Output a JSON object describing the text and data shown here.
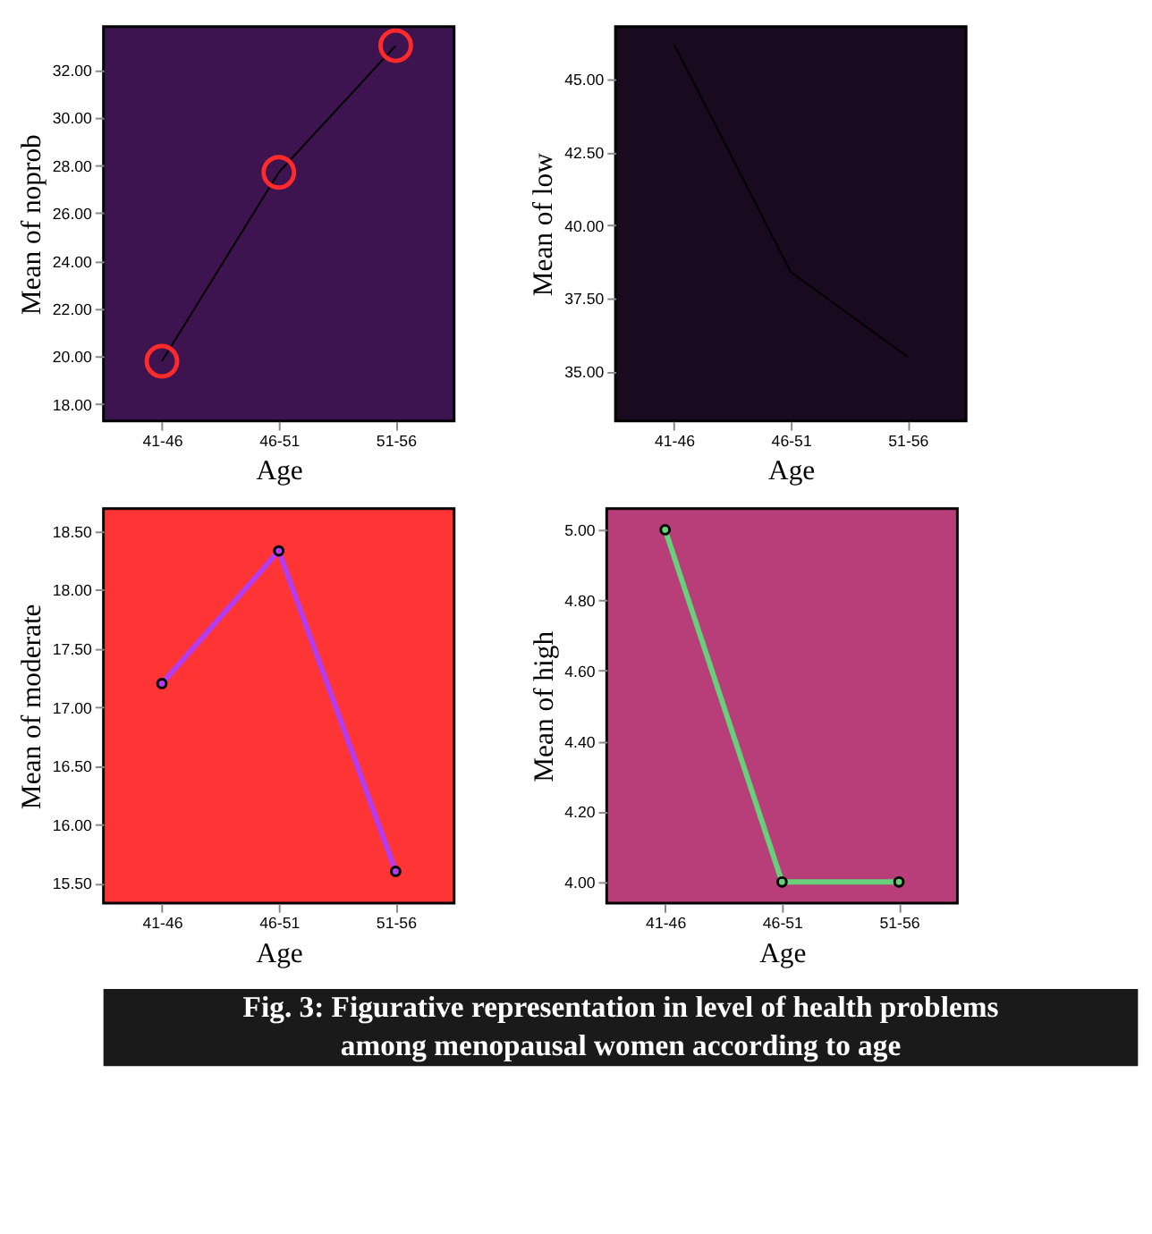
{
  "chart_data": [
    {
      "type": "line",
      "xlabel": "Age",
      "ylabel": "Mean of noprob",
      "categories": [
        "41-46",
        "46-51",
        "51-56"
      ],
      "marker": "circle",
      "grid": false,
      "series": [
        {
          "color": "#000000",
          "values": [
            19.8,
            27.7,
            33.0
          ]
        }
      ],
      "ylim": [
        17.3,
        33.8
      ],
      "yticks": [
        {
          "value": 18,
          "label": "18.00"
        },
        {
          "value": 20,
          "label": "20.00"
        },
        {
          "value": 22,
          "label": "22.00"
        },
        {
          "value": 24,
          "label": "24.00"
        },
        {
          "value": 26,
          "label": "26.00"
        },
        {
          "value": 28,
          "label": "28.00"
        },
        {
          "value": 30,
          "label": "30.00"
        },
        {
          "value": 32,
          "label": "32.00"
        }
      ]
    },
    {
      "type": "line",
      "xlabel": "Age",
      "ylabel": "Mean of low",
      "categories": [
        "41-46",
        "46-51",
        "51-56"
      ],
      "marker": "none",
      "grid": false,
      "series": [
        {
          "color": "#000000",
          "values": [
            46.2,
            38.4,
            35.5
          ]
        }
      ],
      "ylim": [
        33.3,
        46.8
      ],
      "yticks": [
        {
          "value": 35,
          "label": "35.00"
        },
        {
          "value": 37.5,
          "label": "37.50"
        },
        {
          "value": 40,
          "label": "40.00"
        },
        {
          "value": 42.5,
          "label": "42.50"
        },
        {
          "value": 45,
          "label": "45.00"
        }
      ]
    },
    {
      "type": "line",
      "xlabel": "Age",
      "ylabel": "Mean of moderate",
      "categories": [
        "41-46",
        "46-51",
        "51-56"
      ],
      "marker": "circle",
      "grid": false,
      "series": [
        {
          "color": "#b43cf0",
          "values": [
            17.2,
            18.33,
            15.6
          ]
        }
      ],
      "ylim": [
        15.33,
        18.69
      ],
      "yticks": [
        {
          "value": 15.5,
          "label": "15.50"
        },
        {
          "value": 16,
          "label": "16.00"
        },
        {
          "value": 16.5,
          "label": "16.50"
        },
        {
          "value": 17,
          "label": "17.00"
        },
        {
          "value": 17.5,
          "label": "17.50"
        },
        {
          "value": 18,
          "label": "18.00"
        },
        {
          "value": 18.5,
          "label": "18.50"
        }
      ]
    },
    {
      "type": "line",
      "xlabel": "Age",
      "ylabel": "Mean of high",
      "categories": [
        "41-46",
        "46-51",
        "51-56"
      ],
      "marker": "circle",
      "grid": false,
      "series": [
        {
          "color": "#66d17a",
          "values": [
            5.0,
            4.0,
            4.0
          ]
        }
      ],
      "ylim": [
        3.94,
        5.06
      ],
      "yticks": [
        {
          "value": 4,
          "label": "4.00"
        },
        {
          "value": 4.2,
          "label": "4.20"
        },
        {
          "value": 4.4,
          "label": "4.40"
        },
        {
          "value": 4.6,
          "label": "4.60"
        },
        {
          "value": 4.8,
          "label": "4.80"
        },
        {
          "value": 5,
          "label": "5.00"
        }
      ],
      "annotations": [
        "Fig. 3:  Figurative representation in level of health problems among menopausal women according to age"
      ]
    }
  ]
}
